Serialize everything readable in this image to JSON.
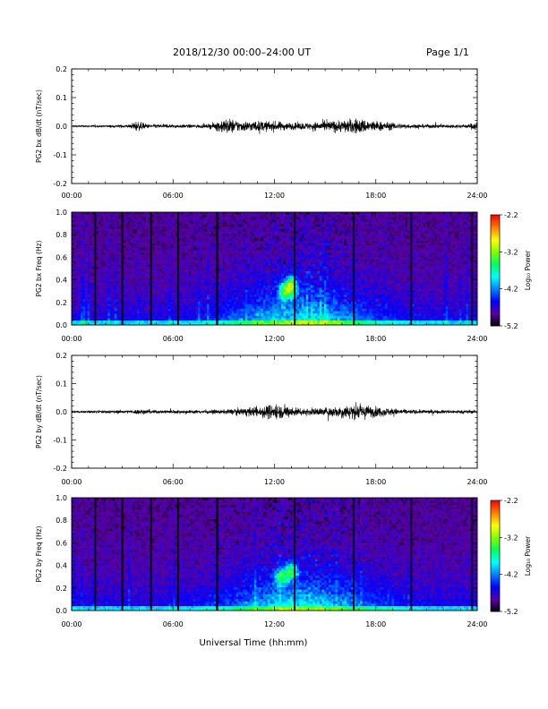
{
  "header": {
    "title": "2018/12/30   00:00–24:00 UT",
    "page": "Page 1/1"
  },
  "x_axis": {
    "label": "Universal Time (hh:mm)",
    "range": [
      0,
      24
    ],
    "ticks": [
      "00:00",
      "06:00",
      "12:00",
      "18:00",
      "24:00"
    ]
  },
  "colorbar": {
    "label": "Log₁₀ Power",
    "range": [
      -5.2,
      -2.2
    ],
    "ticks": [
      "-2.2",
      "-3.2",
      "-4.2",
      "-5.2"
    ],
    "colors": [
      "#000000",
      "#5a00a0",
      "#0000ff",
      "#0080ff",
      "#00ffff",
      "#00ff60",
      "#80ff00",
      "#ffff00",
      "#ff8000",
      "#ff0000"
    ]
  },
  "chart_data": [
    {
      "type": "line",
      "ylabel": "PG2 bx dB/dt (nT/sec)",
      "xlabel": "",
      "xlim": [
        0,
        24
      ],
      "ylim": [
        -0.2,
        0.2
      ],
      "yticks": [
        "0.2",
        "0.1",
        "0.0",
        "-0.1",
        "-0.2"
      ],
      "envelope": {
        "x": [
          0,
          2,
          3.5,
          3.8,
          4.0,
          4.5,
          6,
          8,
          8.5,
          9.0,
          9.5,
          10,
          11,
          12,
          13,
          14,
          15,
          16,
          16.8,
          17.3,
          18,
          19,
          20,
          22,
          23.5,
          24
        ],
        "amplitude": [
          0.005,
          0.006,
          0.01,
          0.03,
          0.025,
          0.012,
          0.01,
          0.01,
          0.022,
          0.045,
          0.04,
          0.03,
          0.03,
          0.028,
          0.02,
          0.02,
          0.03,
          0.035,
          0.045,
          0.04,
          0.03,
          0.02,
          0.012,
          0.01,
          0.012,
          0.03
        ]
      }
    },
    {
      "type": "heatmap",
      "ylabel": "PG2 bx Freq (Hz)",
      "xlabel": "",
      "xlim": [
        0,
        24
      ],
      "ylim": [
        0,
        1.0
      ],
      "yticks": [
        "1.0",
        "0.8",
        "0.6",
        "0.4",
        "0.2",
        "0.0"
      ],
      "value_range": [
        -5.2,
        -2.2
      ],
      "gaps_hours": [
        1.4,
        3.0,
        4.7,
        6.3,
        8.6,
        13.2,
        16.7,
        20.1,
        23.7
      ],
      "hot_spots": [
        {
          "t": 13.0,
          "f": 0.35,
          "value": -2.4
        },
        {
          "t": 12.6,
          "f": 0.3,
          "value": -2.9
        }
      ]
    },
    {
      "type": "line",
      "ylabel": "PG2 by dB/dt (nT/sec)",
      "xlabel": "",
      "xlim": [
        0,
        24
      ],
      "ylim": [
        -0.2,
        0.2
      ],
      "yticks": [
        "0.2",
        "0.1",
        "0.0",
        "-0.1",
        "-0.2"
      ],
      "envelope": {
        "x": [
          0,
          2,
          3.5,
          4.0,
          5,
          6,
          8,
          9,
          10,
          11,
          11.5,
          12,
          13,
          14,
          15,
          16,
          16.5,
          17.3,
          18,
          19,
          20,
          22,
          24
        ],
        "amplitude": [
          0.005,
          0.008,
          0.01,
          0.015,
          0.01,
          0.01,
          0.01,
          0.012,
          0.02,
          0.03,
          0.04,
          0.045,
          0.03,
          0.02,
          0.025,
          0.035,
          0.045,
          0.04,
          0.03,
          0.02,
          0.012,
          0.01,
          0.01
        ]
      }
    },
    {
      "type": "heatmap",
      "ylabel": "PG2 by Freq (Hz)",
      "xlabel": "Universal Time (hh:mm)",
      "xlim": [
        0,
        24
      ],
      "ylim": [
        0,
        1.0
      ],
      "yticks": [
        "1.0",
        "0.8",
        "0.6",
        "0.4",
        "0.2",
        "0.0"
      ],
      "value_range": [
        -5.2,
        -2.2
      ],
      "gaps_hours": [
        1.4,
        3.0,
        4.7,
        6.3,
        8.6,
        13.2,
        16.7,
        20.1,
        23.7
      ],
      "hot_spots": [
        {
          "t": 13.0,
          "f": 0.35,
          "value": -2.8
        },
        {
          "t": 12.4,
          "f": 0.3,
          "value": -3.0
        }
      ]
    }
  ]
}
